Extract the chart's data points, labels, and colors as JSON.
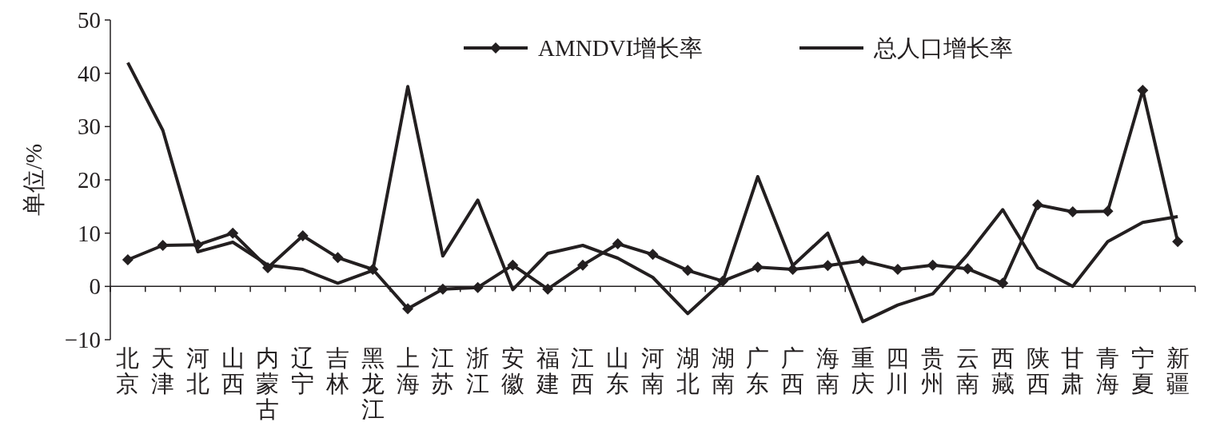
{
  "chart_data": {
    "type": "line",
    "ylabel": "单位/%",
    "categories": [
      "北京",
      "天津",
      "河北",
      "山西",
      "内蒙古",
      "辽宁",
      "吉林",
      "黑龙江",
      "上海",
      "江苏",
      "浙江",
      "安徽",
      "福建",
      "江西",
      "山东",
      "河南",
      "湖北",
      "湖南",
      "广东",
      "广西",
      "海南",
      "重庆",
      "四川",
      "贵州",
      "云南",
      "西藏",
      "陕西",
      "甘肃",
      "青海",
      "宁夏",
      "新疆"
    ],
    "series": [
      {
        "name": "AMNDVI增长率",
        "color": "#231f20",
        "marker": "diamond",
        "values": [
          5,
          7.7,
          7.8,
          10,
          3.5,
          9.5,
          5.4,
          3.2,
          -4.2,
          -0.5,
          -0.2,
          4,
          -0.5,
          4,
          8,
          6,
          3,
          1,
          3.6,
          3.2,
          3.9,
          4.8,
          3.2,
          4,
          3.3,
          0.6,
          15.3,
          14,
          14.1,
          36.8,
          8.4
        ]
      },
      {
        "name": "总人口增长率",
        "color": "#231f20",
        "marker": "none",
        "values": [
          42,
          29.3,
          6.5,
          8.3,
          4,
          3.2,
          0.6,
          3,
          37.5,
          5.7,
          16.2,
          -0.6,
          6.2,
          7.7,
          5.3,
          1.7,
          -5.1,
          0.9,
          20.6,
          3.9,
          10,
          -6.6,
          -3.5,
          -1.4,
          6,
          14.4,
          3.5,
          0,
          8.4,
          12,
          13.1
        ]
      }
    ],
    "ylim": [
      -10,
      50
    ],
    "yticks": [
      -10,
      0,
      10,
      20,
      30,
      40,
      50
    ],
    "grid": false,
    "legend": "top"
  }
}
